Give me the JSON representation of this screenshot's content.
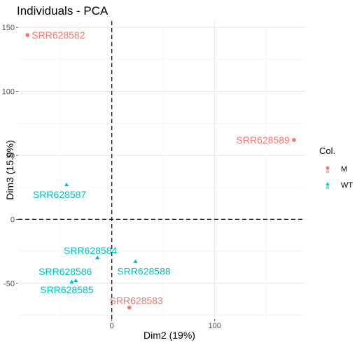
{
  "chart_data": {
    "type": "scatter",
    "title": "Individuals - PCA",
    "xlabel": "Dim2 (19%)",
    "ylabel": "Dim3 (15.9%)",
    "xlim": [
      -91,
      188
    ],
    "ylim": [
      -78,
      155
    ],
    "x_ticks": [
      {
        "value": 0,
        "label": "0"
      },
      {
        "value": 100,
        "label": "100"
      }
    ],
    "y_ticks": [
      {
        "value": -50,
        "label": "-50"
      },
      {
        "value": 0,
        "label": "0"
      },
      {
        "value": 50,
        "label": "50"
      },
      {
        "value": 100,
        "label": "100"
      },
      {
        "value": 150,
        "label": "150"
      }
    ],
    "grid": true,
    "reference_lines": {
      "x": 0,
      "y": 0,
      "style": "dashed"
    },
    "legend": {
      "title": "Col.",
      "position": "right",
      "entries": [
        {
          "label": "M",
          "color": "#F8766D",
          "shape": "circle"
        },
        {
          "label": "WT",
          "color": "#00BFC4",
          "shape": "triangle"
        }
      ]
    },
    "series": [
      {
        "name": "M",
        "color": "#F8766D",
        "shape": "circle",
        "points": [
          {
            "label": "SRR628582",
            "x": -82,
            "y": 144,
            "anchor": "start",
            "dx": 6,
            "dy": 0
          },
          {
            "label": "SRR628589",
            "x": 177,
            "y": 62,
            "anchor": "end",
            "dx": -6,
            "dy": 0
          },
          {
            "label": "SRR628583",
            "x": 17,
            "y": -69,
            "anchor": "middle",
            "dx": 10,
            "dy": -10
          }
        ]
      },
      {
        "name": "WT",
        "color": "#00BFC4",
        "shape": "triangle",
        "points": [
          {
            "label": "SRR628587",
            "x": -44,
            "y": 27,
            "anchor": "middle",
            "dx": -10,
            "dy": 14
          },
          {
            "label": "SRR628584",
            "x": -14,
            "y": -30,
            "anchor": "middle",
            "dx": -10,
            "dy": -10
          },
          {
            "label": "SRR628588",
            "x": 23,
            "y": -33,
            "anchor": "middle",
            "dx": 12,
            "dy": 14
          },
          {
            "label": "SRR628586",
            "x": -35,
            "y": -48,
            "anchor": "middle",
            "dx": -15,
            "dy": -13
          },
          {
            "label": "SRR628585",
            "x": -39,
            "y": -49,
            "anchor": "middle",
            "dx": -7,
            "dy": 11
          }
        ]
      }
    ]
  }
}
